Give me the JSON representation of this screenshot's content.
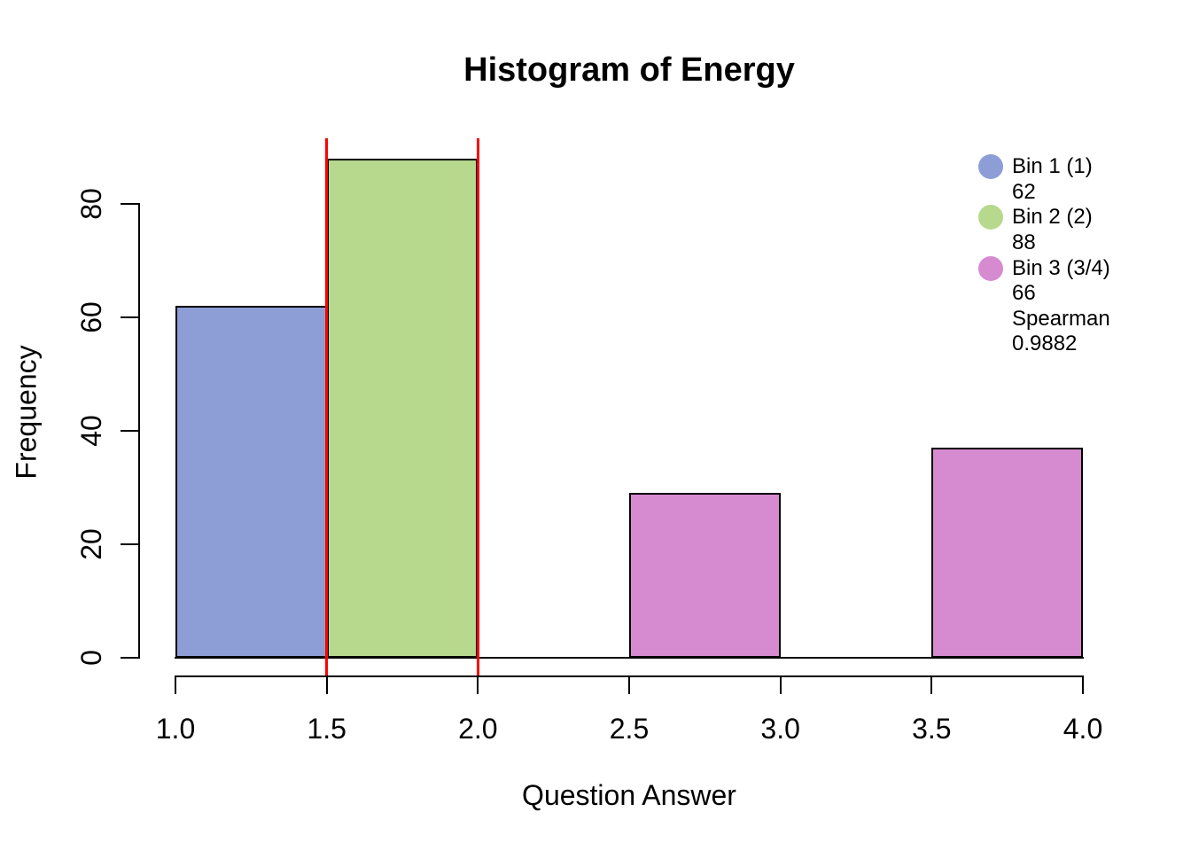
{
  "chart_data": {
    "type": "histogram",
    "title": "Histogram of Energy",
    "xlabel": "Question Answer",
    "ylabel": "Frequency",
    "xlim": [
      1.0,
      4.0
    ],
    "y_axis_range": [
      0,
      80
    ],
    "x_tick_values": [
      1.0,
      1.5,
      2.0,
      2.5,
      3.0,
      3.5,
      4.0
    ],
    "x_tick_labels": [
      "1.0",
      "1.5",
      "2.0",
      "2.5",
      "3.0",
      "3.5",
      "4.0"
    ],
    "y_tick_values": [
      0,
      20,
      40,
      60,
      80
    ],
    "grid": false,
    "bars": [
      {
        "x0": 1.0,
        "x1": 1.5,
        "count": 62,
        "color": "#8D9DD6"
      },
      {
        "x0": 1.5,
        "x1": 2.0,
        "count": 88,
        "color": "#B6D98E"
      },
      {
        "x0": 2.5,
        "x1": 3.0,
        "count": 29,
        "color": "#D68BD0"
      },
      {
        "x0": 3.5,
        "x1": 4.0,
        "count": 37,
        "color": "#D68BD0"
      }
    ],
    "marker_lines": {
      "x_values": [
        1.5,
        2.0
      ],
      "color": "#FF0000"
    },
    "legend_position": "top-right",
    "legend": [
      {
        "marker_color": "#8D9DD6",
        "lines": [
          "Bin 1 (1)",
          "62"
        ]
      },
      {
        "marker_color": "#B6D98E",
        "lines": [
          "Bin 2 (2)",
          "88"
        ]
      },
      {
        "marker_color": "#D68BD0",
        "lines": [
          "Bin 3 (3/4)",
          "66",
          "Spearman",
          "0.9882"
        ]
      }
    ]
  }
}
